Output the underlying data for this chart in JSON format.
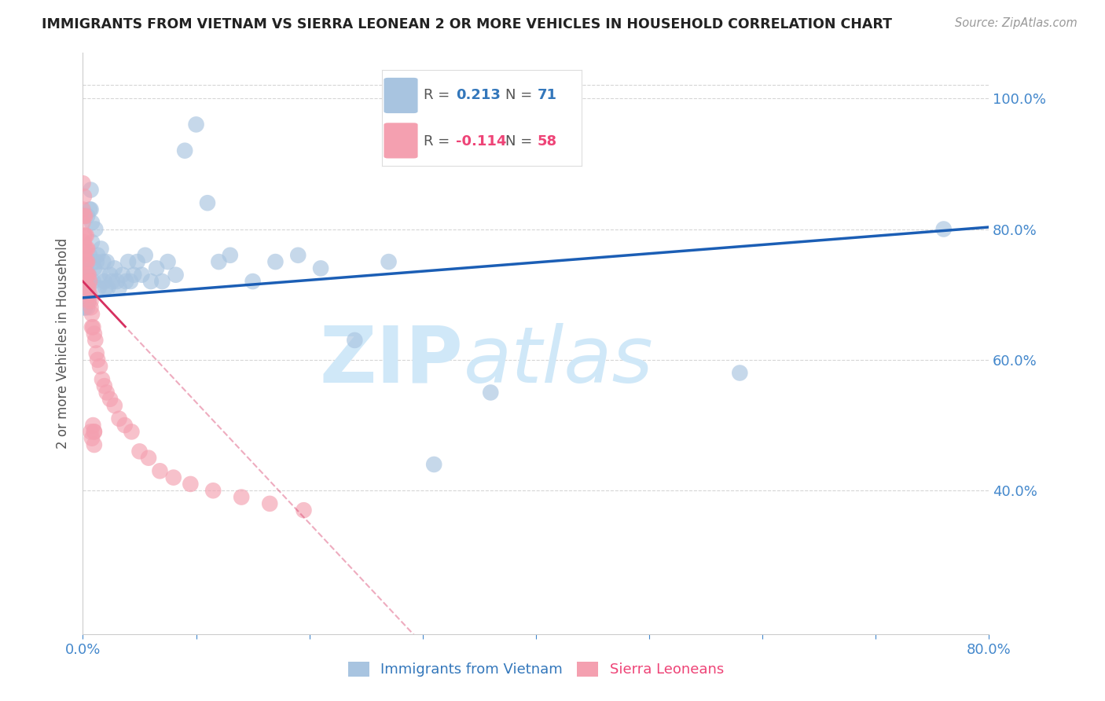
{
  "title": "IMMIGRANTS FROM VIETNAM VS SIERRA LEONEAN 2 OR MORE VEHICLES IN HOUSEHOLD CORRELATION CHART",
  "source": "Source: ZipAtlas.com",
  "ylabel": "2 or more Vehicles in Household",
  "watermark_line1": "ZIP",
  "watermark_line2": "atlas",
  "blue_R": 0.213,
  "blue_N": 71,
  "pink_R": -0.114,
  "pink_N": 58,
  "xlim": [
    0.0,
    0.8
  ],
  "ylim": [
    0.18,
    1.07
  ],
  "yticks": [
    0.4,
    0.6,
    0.8,
    1.0
  ],
  "xtick_show": [
    0.0,
    0.8
  ],
  "xtick_minor": [
    0.1,
    0.2,
    0.3,
    0.4,
    0.5,
    0.6,
    0.7
  ],
  "blue_scatter_x": [
    0.001,
    0.001,
    0.001,
    0.002,
    0.002,
    0.002,
    0.002,
    0.003,
    0.003,
    0.003,
    0.003,
    0.004,
    0.004,
    0.004,
    0.005,
    0.005,
    0.005,
    0.006,
    0.006,
    0.006,
    0.007,
    0.007,
    0.008,
    0.008,
    0.009,
    0.009,
    0.01,
    0.011,
    0.012,
    0.013,
    0.014,
    0.015,
    0.016,
    0.018,
    0.019,
    0.02,
    0.021,
    0.022,
    0.024,
    0.026,
    0.028,
    0.03,
    0.032,
    0.035,
    0.038,
    0.04,
    0.042,
    0.045,
    0.048,
    0.052,
    0.055,
    0.06,
    0.065,
    0.07,
    0.075,
    0.082,
    0.09,
    0.1,
    0.11,
    0.12,
    0.13,
    0.15,
    0.17,
    0.19,
    0.21,
    0.24,
    0.27,
    0.31,
    0.36,
    0.58,
    0.76
  ],
  "blue_scatter_y": [
    0.7,
    0.72,
    0.68,
    0.71,
    0.69,
    0.72,
    0.68,
    0.74,
    0.7,
    0.72,
    0.75,
    0.68,
    0.72,
    0.82,
    0.7,
    0.73,
    0.69,
    0.83,
    0.72,
    0.76,
    0.83,
    0.86,
    0.81,
    0.78,
    0.75,
    0.72,
    0.74,
    0.8,
    0.75,
    0.76,
    0.71,
    0.73,
    0.77,
    0.75,
    0.72,
    0.71,
    0.75,
    0.71,
    0.73,
    0.72,
    0.74,
    0.72,
    0.71,
    0.73,
    0.72,
    0.75,
    0.72,
    0.73,
    0.75,
    0.73,
    0.76,
    0.72,
    0.74,
    0.72,
    0.75,
    0.73,
    0.92,
    0.96,
    0.84,
    0.75,
    0.76,
    0.72,
    0.75,
    0.76,
    0.74,
    0.63,
    0.75,
    0.44,
    0.55,
    0.58,
    0.8
  ],
  "pink_scatter_x": [
    0.0,
    0.0,
    0.0,
    0.001,
    0.001,
    0.001,
    0.001,
    0.001,
    0.002,
    0.002,
    0.002,
    0.002,
    0.003,
    0.003,
    0.003,
    0.003,
    0.004,
    0.004,
    0.004,
    0.004,
    0.005,
    0.005,
    0.005,
    0.006,
    0.006,
    0.007,
    0.007,
    0.008,
    0.008,
    0.009,
    0.01,
    0.011,
    0.012,
    0.013,
    0.015,
    0.017,
    0.019,
    0.021,
    0.024,
    0.028,
    0.032,
    0.037,
    0.043,
    0.05,
    0.058,
    0.068,
    0.08,
    0.095,
    0.115,
    0.14,
    0.165,
    0.195,
    0.01,
    0.007,
    0.008,
    0.009,
    0.01,
    0.01
  ],
  "pink_scatter_y": [
    0.87,
    0.83,
    0.81,
    0.85,
    0.82,
    0.79,
    0.78,
    0.76,
    0.82,
    0.79,
    0.77,
    0.75,
    0.79,
    0.77,
    0.75,
    0.73,
    0.77,
    0.75,
    0.73,
    0.71,
    0.73,
    0.71,
    0.69,
    0.72,
    0.7,
    0.69,
    0.68,
    0.67,
    0.65,
    0.65,
    0.64,
    0.63,
    0.61,
    0.6,
    0.59,
    0.57,
    0.56,
    0.55,
    0.54,
    0.53,
    0.51,
    0.5,
    0.49,
    0.46,
    0.45,
    0.43,
    0.42,
    0.41,
    0.4,
    0.39,
    0.38,
    0.37,
    0.49,
    0.49,
    0.48,
    0.5,
    0.49,
    0.47
  ],
  "blue_color": "#A8C4E0",
  "pink_color": "#F4A0B0",
  "blue_line_color": "#1B5EB5",
  "pink_line_color": "#D63060",
  "title_color": "#222222",
  "axis_label_color": "#555555",
  "tick_color": "#4488CC",
  "grid_color": "#BBBBBB",
  "watermark_color": "#D0E8F8",
  "legend_blue_text_color": "#3377BB",
  "legend_pink_text_color": "#EE4477",
  "background_color": "#FFFFFF",
  "blue_line_intercept": 0.695,
  "blue_line_slope": 0.135,
  "pink_line_intercept": 0.72,
  "pink_line_slope": -1.85
}
